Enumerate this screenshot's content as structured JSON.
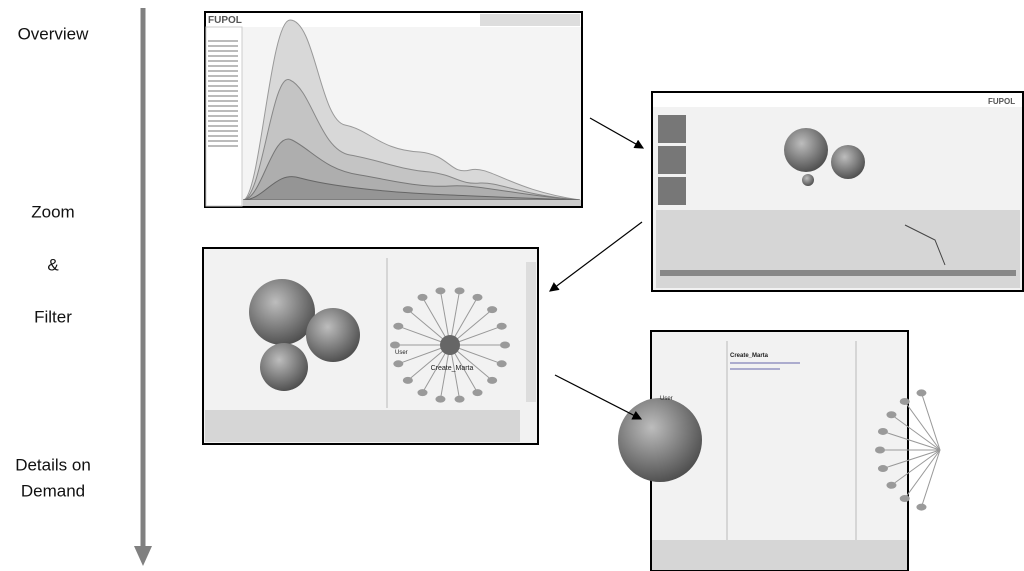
{
  "labels": {
    "overview": "Overview",
    "zoom": "Zoom",
    "amp": "&",
    "filter": "Filter",
    "details_1": "Details on",
    "details_2": "Demand"
  },
  "screens": [
    {
      "logo": "FUPOL"
    },
    {
      "logo": "FUPOL"
    },
    {
      "center_label": "Create_Marta",
      "user": "User"
    },
    {
      "title": "Create_Marta",
      "user": "User"
    }
  ]
}
